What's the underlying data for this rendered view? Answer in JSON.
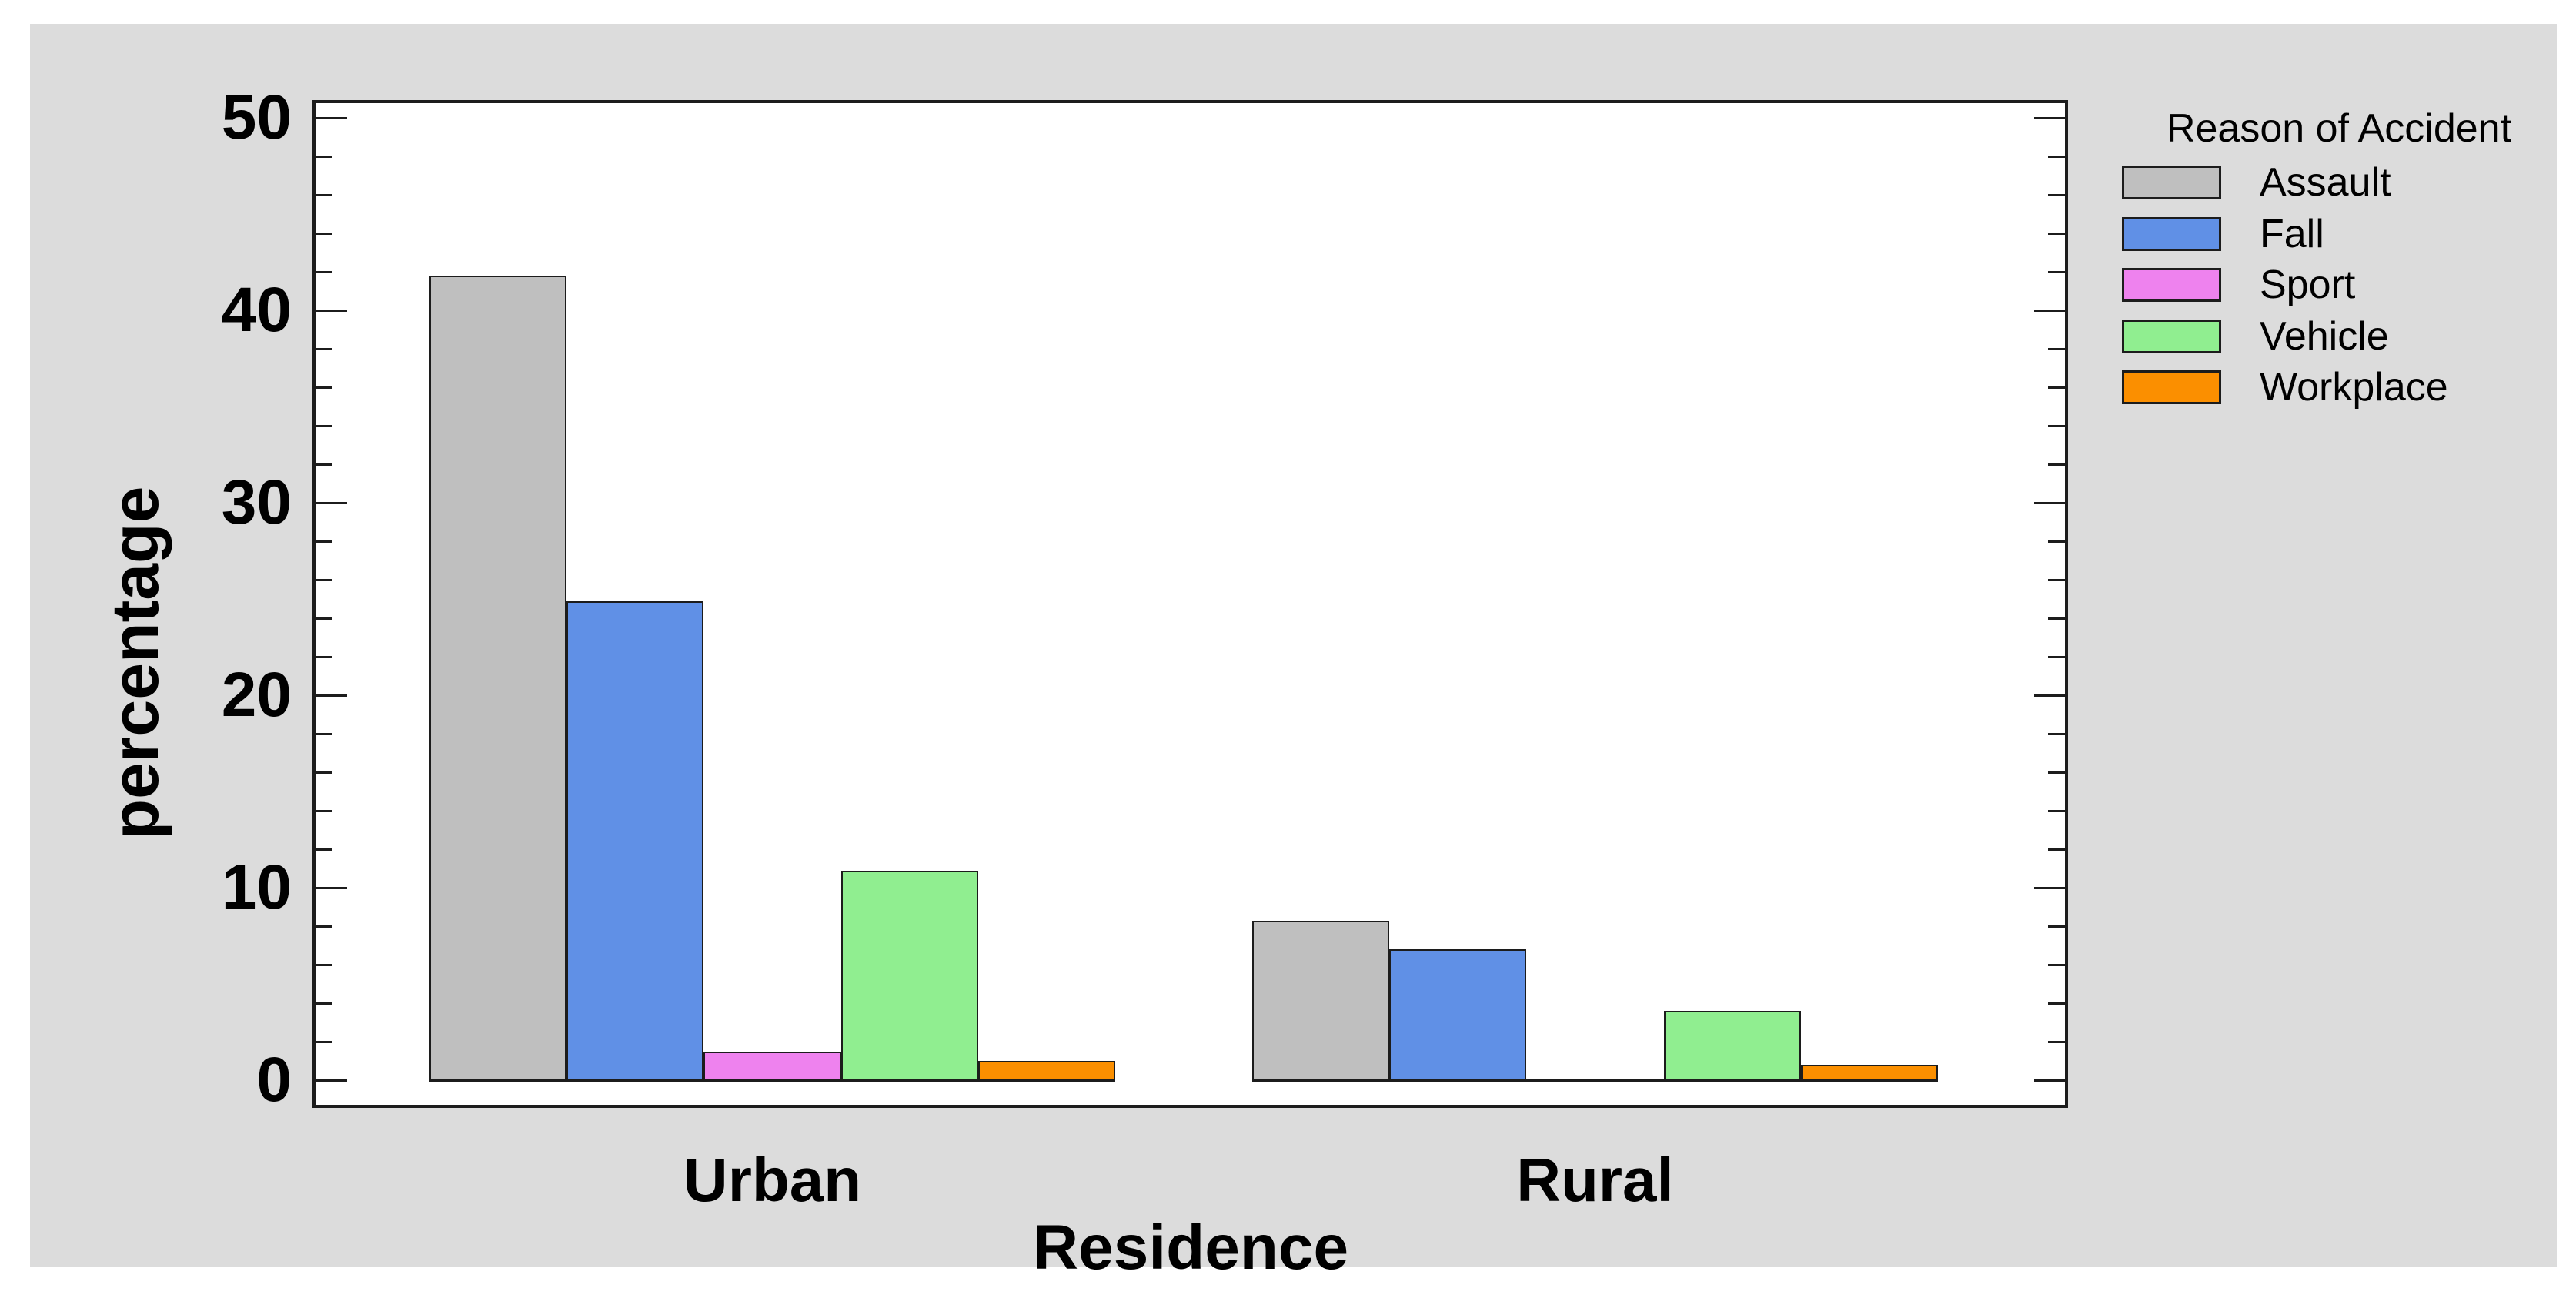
{
  "colors": {
    "page_background": "#ffffff",
    "panel_background": "#dcdcdc",
    "plot_background": "#ffffff",
    "axis_line": "#1c1c1c",
    "text": "#000000"
  },
  "chart_data": {
    "type": "bar",
    "title": "",
    "xlabel": "Residence",
    "ylabel": "percentage",
    "categories": [
      "Urban",
      "Rural"
    ],
    "series": [
      {
        "name": "Assault",
        "color": "#bfbfbf",
        "values": [
          41.8,
          8.3
        ]
      },
      {
        "name": "Fall",
        "color": "#6090e6",
        "values": [
          24.9,
          6.8
        ]
      },
      {
        "name": "Sport",
        "color": "#ee82ee",
        "values": [
          1.5,
          0.0
        ]
      },
      {
        "name": "Vehicle",
        "color": "#90ee90",
        "values": [
          10.9,
          3.6
        ]
      },
      {
        "name": "Workplace",
        "color": "#fb8f00",
        "values": [
          1.0,
          0.8
        ]
      }
    ],
    "ylim": [
      0,
      50
    ],
    "yticks": [
      0,
      10,
      20,
      30,
      40,
      50
    ],
    "ytick_labels": [
      "0",
      "10",
      "20",
      "30",
      "40",
      "50"
    ],
    "minor_tick_step": 2,
    "grid": false,
    "legend_title": "Reason of Accident",
    "legend_position": "right",
    "bar_outline": true
  }
}
